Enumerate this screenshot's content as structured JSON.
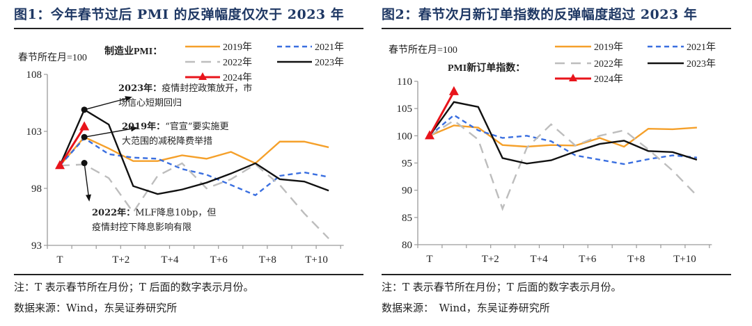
{
  "panels": [
    {
      "title": "图1：今年春节过后 PMI 的反弹幅度仅次于 2023 年",
      "base_note": "春节所在月=100",
      "series_label": "制造业PMI：",
      "note": "注：T 表示春节所在月份；T 后面的数字表示月份。",
      "source": "数据来源：Wind，东吴证券研究所",
      "annotations": [
        {
          "bold": "2023年：",
          "line1": "疫情封控政策放开，市",
          "line2": "场信心短期回归"
        },
        {
          "bold": "2019年：",
          "line1": "“官宣”要实施更",
          "line2": "大范围的减税降费举措"
        },
        {
          "bold": "2022年：",
          "line1": "MLF降息10bp，但",
          "line2": "疫情封控下降息影响有限"
        }
      ]
    },
    {
      "title": "图2：春节次月新订单指数的反弹幅度超过 2023 年",
      "base_note": "春节所在月=100",
      "series_label": "PMI新订单指数：",
      "note": "注：T 表示春节所在月份；T 后面的数字表示月份。",
      "source": "数据来源：　Wind，东吴证券研究所"
    }
  ],
  "chart_data": [
    {
      "type": "line",
      "title": "图1：今年春节过后 PMI 的反弹幅度仅次于 2023 年",
      "ylabel": "春节所在月=100",
      "ylim": [
        93,
        108
      ],
      "yticks": [
        93,
        98,
        103,
        108
      ],
      "x": [
        "T",
        "T+1",
        "T+2",
        "T+3",
        "T+4",
        "T+5",
        "T+6",
        "T+7",
        "T+8",
        "T+9",
        "T+10",
        "T+11"
      ],
      "xtick_labels": [
        "T",
        "T+2",
        "T+4",
        "T+6",
        "T+8",
        "T+10"
      ],
      "legend": "top-right",
      "grid": false,
      "series": [
        {
          "name": "2019年",
          "color": "#f5a02a",
          "style": "solid",
          "values": [
            100,
            102.5,
            101.5,
            100.4,
            100.4,
            100.9,
            100.6,
            101.2,
            100.2,
            102.1,
            102.1,
            101.6
          ]
        },
        {
          "name": "2021年",
          "color": "#3a6fe0",
          "style": "dashed",
          "values": [
            100,
            102.4,
            101.0,
            100.7,
            100.6,
            99.7,
            99.2,
            98.3,
            97.4,
            99.1,
            99.4,
            99.0
          ]
        },
        {
          "name": "2022年",
          "color": "#bdbdbd",
          "style": "longdash",
          "values": [
            100,
            100.1,
            98.9,
            95.9,
            99.1,
            100.2,
            98.0,
            98.8,
            100.1,
            98.3,
            95.8,
            93.6
          ]
        },
        {
          "name": "2023年",
          "color": "#111111",
          "style": "solid",
          "values": [
            100,
            104.9,
            103.6,
            98.2,
            97.5,
            97.9,
            98.5,
            99.3,
            100.2,
            98.8,
            98.6,
            97.8
          ]
        },
        {
          "name": "2024年",
          "color": "#e8141b",
          "style": "solid-triangle",
          "values": [
            100,
            103.4
          ]
        }
      ]
    },
    {
      "type": "line",
      "title": "图2：春节次月新订单指数的反弹幅度超过 2023 年",
      "ylabel": "春节所在月=100",
      "ylim": [
        80,
        110
      ],
      "yticks": [
        80,
        85,
        90,
        95,
        100,
        105,
        110
      ],
      "x": [
        "T",
        "T+1",
        "T+2",
        "T+3",
        "T+4",
        "T+5",
        "T+6",
        "T+7",
        "T+8",
        "T+9",
        "T+10",
        "T+11"
      ],
      "xtick_labels": [
        "T",
        "T+2",
        "T+4",
        "T+6",
        "T+8",
        "T+10"
      ],
      "legend": "top-right",
      "grid": false,
      "series": [
        {
          "name": "2019年",
          "color": "#f5a02a",
          "style": "solid",
          "values": [
            100,
            101.9,
            101.5,
            98.3,
            98.0,
            98.3,
            98.2,
            99.6,
            98.0,
            101.3,
            101.2,
            101.5
          ]
        },
        {
          "name": "2021年",
          "color": "#3a6fe0",
          "style": "dashed",
          "values": [
            100,
            103.8,
            101.0,
            99.6,
            100.0,
            99.0,
            96.4,
            95.6,
            94.8,
            95.7,
            96.4,
            96.0
          ]
        },
        {
          "name": "2022年",
          "color": "#bdbdbd",
          "style": "longdash",
          "values": [
            100,
            102.8,
            99.3,
            86.6,
            97.8,
            102.1,
            98.2,
            100.0,
            101.0,
            97.5,
            93.6,
            89.0
          ]
        },
        {
          "name": "2023年",
          "color": "#111111",
          "style": "solid",
          "values": [
            100,
            106.2,
            105.3,
            95.9,
            94.9,
            95.5,
            97.1,
            98.5,
            99.1,
            97.2,
            97.0,
            95.6
          ]
        },
        {
          "name": "2024年",
          "color": "#e8141b",
          "style": "solid-triangle",
          "values": [
            100,
            108.1
          ]
        }
      ]
    }
  ]
}
